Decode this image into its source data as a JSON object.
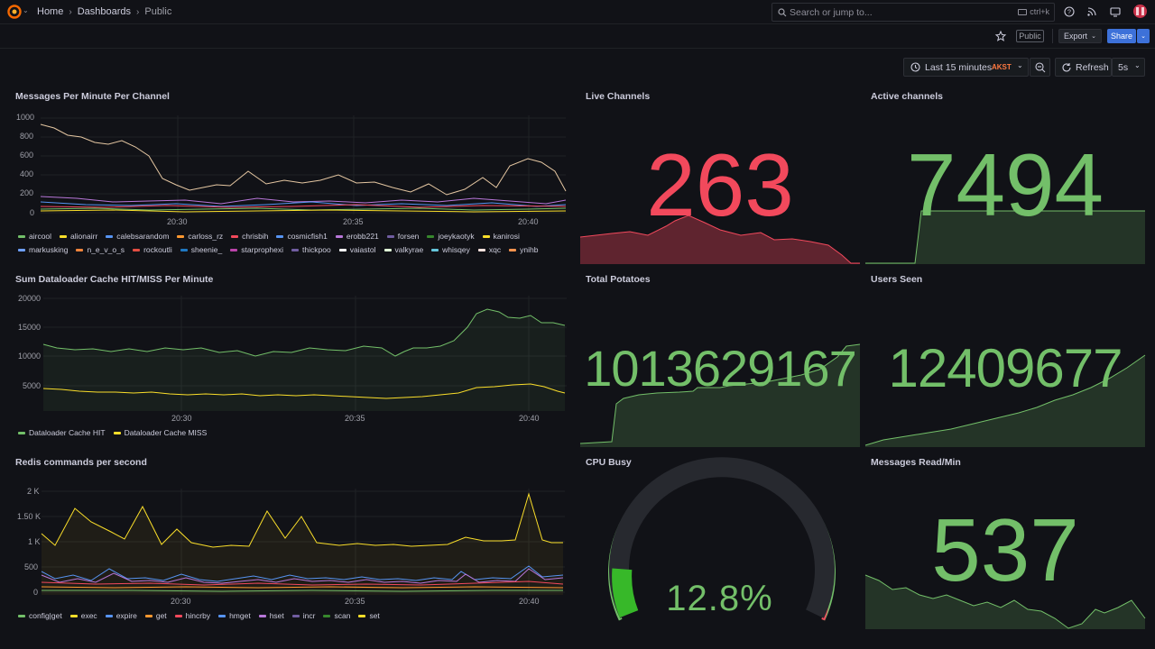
{
  "nav": {
    "home": "Home",
    "dashboards": "Dashboards",
    "current": "Public"
  },
  "search": {
    "placeholder": "Search or jump to...",
    "shortcut": "ctrl+k"
  },
  "toolbar": {
    "public_label": "Public",
    "export_label": "Export",
    "share_label": "Share"
  },
  "time": {
    "range": "Last 15 minutes",
    "tz": "AKST",
    "refresh_label": "Refresh",
    "interval": "5s"
  },
  "colors": {
    "green": "#73bf69",
    "red": "#f2495c",
    "yellow": "#fade2a",
    "blue": "#5794f2",
    "orange": "#ff9830",
    "bg": "#111217"
  },
  "panels": {
    "messages": {
      "title": "Messages Per Minute Per Channel",
      "yticks": [
        "1000",
        "800",
        "600",
        "400",
        "200",
        "0"
      ],
      "xticks": [
        "20:30",
        "20:35",
        "20:40"
      ],
      "legend": [
        {
          "name": "aircool",
          "color": "#73bf69"
        },
        {
          "name": "alionairr",
          "color": "#fade2a"
        },
        {
          "name": "calebsarandom",
          "color": "#5794f2"
        },
        {
          "name": "carloss_rz",
          "color": "#ff9830"
        },
        {
          "name": "chrisbih",
          "color": "#f2495c"
        },
        {
          "name": "cosmicfish1",
          "color": "#5794f2"
        },
        {
          "name": "erobb221",
          "color": "#b877d9"
        },
        {
          "name": "forsen",
          "color": "#705da0"
        },
        {
          "name": "joeykaotyk",
          "color": "#37872d"
        },
        {
          "name": "kanirosi",
          "color": "#fade2a"
        },
        {
          "name": "markusking",
          "color": "#6e9fff"
        },
        {
          "name": "n_e_v_o_s",
          "color": "#ef843c"
        },
        {
          "name": "rockoutli",
          "color": "#e24d42"
        },
        {
          "name": "sheenie_",
          "color": "#1f78c1"
        },
        {
          "name": "starprophexi",
          "color": "#ba43a9"
        },
        {
          "name": "thickpoo",
          "color": "#705da0"
        },
        {
          "name": "vaiastol",
          "color": "#ffffff"
        },
        {
          "name": "valkyrae",
          "color": "#e0f9d7"
        },
        {
          "name": "whisqey",
          "color": "#65c5db"
        },
        {
          "name": "xqc",
          "color": "#fce2de"
        },
        {
          "name": "ynihb",
          "color": "#f9934e"
        }
      ]
    },
    "dataloader": {
      "title": "Sum Dataloader Cache HIT/MISS Per Minute",
      "yticks": [
        "20000",
        "15000",
        "10000",
        "5000"
      ],
      "xticks": [
        "20:30",
        "20:35",
        "20:40"
      ],
      "legend": [
        {
          "name": "Dataloader Cache HIT",
          "color": "#73bf69"
        },
        {
          "name": "Dataloader Cache MISS",
          "color": "#fade2a"
        }
      ]
    },
    "redis": {
      "title": "Redis commands per second",
      "yticks": [
        "2 K",
        "1.50 K",
        "1 K",
        "500",
        "0"
      ],
      "xticks": [
        "20:30",
        "20:35",
        "20:40"
      ],
      "legend": [
        {
          "name": "config|get",
          "color": "#73bf69"
        },
        {
          "name": "exec",
          "color": "#fade2a"
        },
        {
          "name": "expire",
          "color": "#5794f2"
        },
        {
          "name": "get",
          "color": "#ff9830"
        },
        {
          "name": "hincrby",
          "color": "#f2495c"
        },
        {
          "name": "hmget",
          "color": "#5794f2"
        },
        {
          "name": "hset",
          "color": "#b877d9"
        },
        {
          "name": "incr",
          "color": "#705da0"
        },
        {
          "name": "scan",
          "color": "#37872d"
        },
        {
          "name": "set",
          "color": "#fade2a"
        }
      ]
    },
    "live_channels": {
      "title": "Live Channels",
      "value": "263"
    },
    "active_channels": {
      "title": "Active channels",
      "value": "7494"
    },
    "total_potatoes": {
      "title": "Total Potatoes",
      "value": "1013629167"
    },
    "users_seen": {
      "title": "Users Seen",
      "value": "12409677"
    },
    "cpu_busy": {
      "title": "CPU Busy",
      "value": "12.8%",
      "percent": 12.8
    },
    "messages_read": {
      "title": "Messages Read/Min",
      "value": "537"
    }
  }
}
